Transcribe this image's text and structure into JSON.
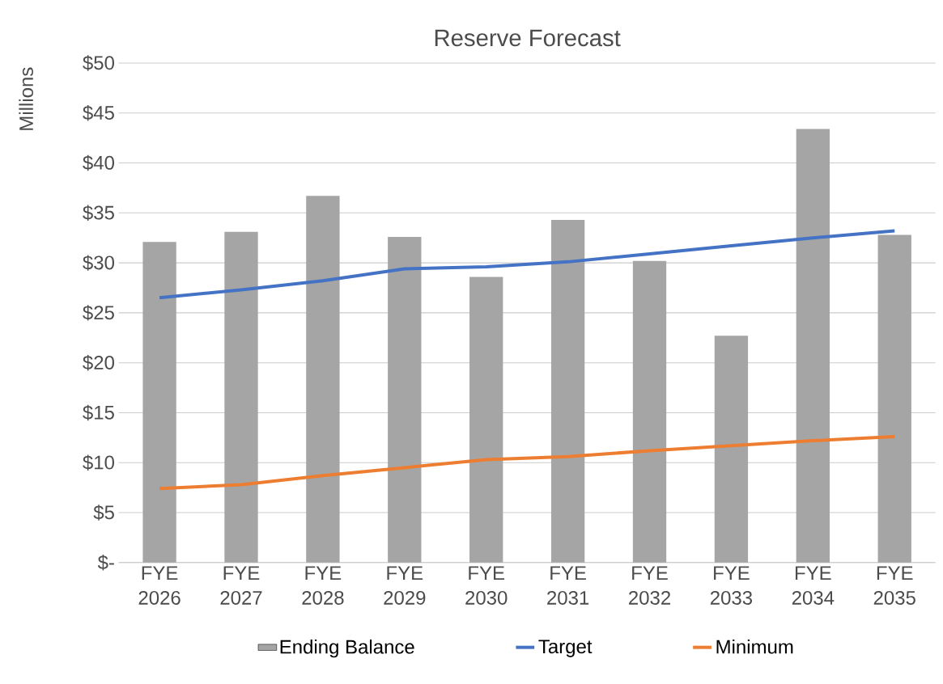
{
  "chart_data": {
    "type": "bar",
    "title": "Reserve Forecast",
    "ylabel": "Millions",
    "categories": [
      "FYE 2026",
      "FYE 2027",
      "FYE 2028",
      "FYE 2029",
      "FYE 2030",
      "FYE 2031",
      "FYE 2032",
      "FYE 2033",
      "FYE 2034",
      "FYE 2035"
    ],
    "series": [
      {
        "name": "Ending Balance",
        "color": "#a5a5a5",
        "values": [
          32.1,
          33.1,
          36.7,
          32.6,
          28.6,
          34.3,
          30.2,
          22.7,
          43.4,
          32.8
        ]
      },
      {
        "name": "Target",
        "type": "line",
        "color": "#4472c4",
        "values": [
          26.5,
          27.3,
          28.2,
          29.4,
          29.6,
          30.1,
          30.9,
          31.7,
          32.5,
          33.2
        ]
      },
      {
        "name": "Minimum",
        "type": "line",
        "color": "#ed7d31",
        "values": [
          7.4,
          7.8,
          8.7,
          9.5,
          10.3,
          10.6,
          11.2,
          11.7,
          12.2,
          12.6
        ]
      }
    ],
    "ylim": [
      0,
      50
    ],
    "yticks": [
      {
        "value": 0,
        "label": "$-"
      },
      {
        "value": 5,
        "label": "$5"
      },
      {
        "value": 10,
        "label": "$10"
      },
      {
        "value": 15,
        "label": "$15"
      },
      {
        "value": 20,
        "label": "$20"
      },
      {
        "value": 25,
        "label": "$25"
      },
      {
        "value": 30,
        "label": "$30"
      },
      {
        "value": 35,
        "label": "$35"
      },
      {
        "value": 40,
        "label": "$40"
      },
      {
        "value": 45,
        "label": "$45"
      },
      {
        "value": 50,
        "label": "$50"
      }
    ],
    "grid": "y",
    "legend": "bottom"
  }
}
